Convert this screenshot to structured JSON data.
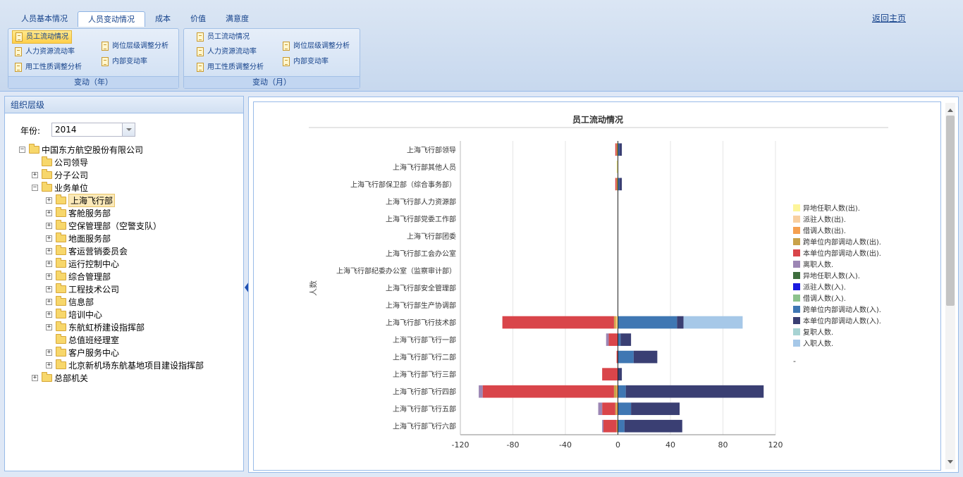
{
  "tabs": [
    "人员基本情况",
    "人员变动情况",
    "成本",
    "价值",
    "满意度"
  ],
  "active_tab": 1,
  "return_link": "返回主页",
  "groups": [
    {
      "title": "变动（年）",
      "buttons": [
        "员工流动情况",
        "人力资源流动率",
        "用工性质调整分析",
        "岗位层级调整分析",
        "内部变动率"
      ]
    },
    {
      "title": "变动（月）",
      "buttons": [
        "员工流动情况",
        "人力资源流动率",
        "用工性质调整分析",
        "岗位层级调整分析",
        "内部变动率"
      ]
    }
  ],
  "left_panel": {
    "title": "组织层级",
    "year_label": "年份:",
    "year_value": "2014"
  },
  "tree": [
    {
      "label": "中国东方航空股份有限公司",
      "level": 0,
      "exp": "minus"
    },
    {
      "label": "公司领导",
      "level": 1,
      "exp": ""
    },
    {
      "label": "分子公司",
      "level": 1,
      "exp": "plus"
    },
    {
      "label": "业务单位",
      "level": 1,
      "exp": "minus"
    },
    {
      "label": "上海飞行部",
      "level": 2,
      "exp": "plus",
      "selected": true
    },
    {
      "label": "客舱服务部",
      "level": 2,
      "exp": "plus"
    },
    {
      "label": "空保管理部（空警支队）",
      "level": 2,
      "exp": "plus"
    },
    {
      "label": "地面服务部",
      "level": 2,
      "exp": "plus"
    },
    {
      "label": "客运营销委员会",
      "level": 2,
      "exp": "plus"
    },
    {
      "label": "运行控制中心",
      "level": 2,
      "exp": "plus"
    },
    {
      "label": "综合管理部",
      "level": 2,
      "exp": "plus"
    },
    {
      "label": "工程技术公司",
      "level": 2,
      "exp": "plus"
    },
    {
      "label": "信息部",
      "level": 2,
      "exp": "plus"
    },
    {
      "label": "培训中心",
      "level": 2,
      "exp": "plus"
    },
    {
      "label": "东航虹桥建设指挥部",
      "level": 2,
      "exp": "plus"
    },
    {
      "label": "总值班经理室",
      "level": 2,
      "exp": ""
    },
    {
      "label": "客户服务中心",
      "level": 2,
      "exp": "plus"
    },
    {
      "label": "北京新机场东航基地项目建设指挥部",
      "level": 2,
      "exp": "plus"
    },
    {
      "label": "总部机关",
      "level": 1,
      "exp": "plus"
    }
  ],
  "chart_data": {
    "type": "bar",
    "orientation": "horizontal",
    "stacked": true,
    "title": "员工流动情况",
    "ylabel": "人数",
    "xlim": [
      -120,
      120
    ],
    "xticks": [
      -120,
      -80,
      -40,
      0,
      40,
      80,
      120
    ],
    "grid": true,
    "legend_position": "right",
    "categories": [
      "上海飞行部领导",
      "上海飞行部其他人员",
      "上海飞行部保卫部（综合事务部）",
      "上海飞行部人力资源部",
      "上海飞行部党委工作部",
      "上海飞行部团委",
      "上海飞行部工会办公室",
      "上海飞行部纪委办公室（监察审计部）",
      "上海飞行部安全管理部",
      "上海飞行部生产协调部",
      "上海飞行部飞行技术部",
      "上海飞行部飞行一部",
      "上海飞行部飞行二部",
      "上海飞行部飞行三部",
      "上海飞行部飞行四部",
      "上海飞行部飞行五部",
      "上海飞行部飞行六部"
    ],
    "series": [
      {
        "name": "异地任职人数(出).",
        "color": "#fdf59a",
        "values": [
          0,
          -1,
          0,
          0,
          0,
          0,
          0,
          0,
          0,
          0,
          -1,
          0,
          0,
          0,
          0,
          0,
          0
        ]
      },
      {
        "name": "派驻人数(出).",
        "color": "#f8cfa0",
        "values": [
          0,
          0,
          0,
          0,
          0,
          0,
          0,
          0,
          0,
          0,
          0,
          0,
          0,
          0,
          0,
          0,
          0
        ]
      },
      {
        "name": "借调人数(出).",
        "color": "#f5a050",
        "values": [
          0,
          0,
          0,
          0,
          0,
          0,
          0,
          0,
          0,
          0,
          -1,
          0,
          0,
          0,
          -1,
          -1,
          0
        ]
      },
      {
        "name": "跨单位内部调动人数(出).",
        "color": "#c9a24a",
        "values": [
          -1,
          0,
          -1,
          0,
          0,
          0,
          0,
          0,
          0,
          0,
          -1,
          0,
          0,
          0,
          -2,
          -1,
          -1
        ]
      },
      {
        "name": "本单位内部调动人数(出).",
        "color": "#d9454a",
        "values": [
          -1,
          0,
          -1,
          0,
          0,
          0,
          0,
          0,
          0,
          0,
          -85,
          -7,
          -1,
          -12,
          -100,
          -10,
          -10
        ]
      },
      {
        "name": "离职人数.",
        "color": "#9c86b4",
        "values": [
          0,
          0,
          0,
          0,
          0,
          0,
          0,
          0,
          0,
          0,
          0,
          -2,
          0,
          0,
          -3,
          -3,
          -1
        ]
      },
      {
        "name": "异地任职人数(入).",
        "color": "#3e6e3e",
        "values": [
          0,
          0,
          0,
          0,
          0,
          0,
          0,
          0,
          0,
          0,
          0,
          0,
          0,
          0,
          0,
          0,
          0
        ]
      },
      {
        "name": "派驻人数(入).",
        "color": "#1a1ae0",
        "values": [
          0,
          0,
          0,
          0,
          0,
          0,
          0,
          0,
          0,
          0,
          0,
          0,
          0,
          0,
          0,
          0,
          0
        ]
      },
      {
        "name": "借调人数(入).",
        "color": "#8cc28c",
        "values": [
          0,
          0,
          0,
          0,
          0,
          0,
          0,
          0,
          0,
          0,
          0,
          0,
          0,
          0,
          0,
          0,
          0
        ]
      },
      {
        "name": "跨单位内部调动人数(入).",
        "color": "#3f77b3",
        "values": [
          1,
          0,
          1,
          0,
          0,
          0,
          0,
          0,
          0,
          0,
          45,
          2,
          12,
          0,
          6,
          10,
          5
        ]
      },
      {
        "name": "本单位内部调动人数(入).",
        "color": "#3a3f73",
        "values": [
          2,
          0,
          2,
          0,
          0,
          0,
          0,
          0,
          0,
          0,
          5,
          8,
          18,
          3,
          105,
          37,
          44
        ]
      },
      {
        "name": "复职人数.",
        "color": "#a7d3d3",
        "values": [
          0,
          0,
          0,
          0,
          0,
          0,
          0,
          0,
          0,
          0,
          0,
          0,
          0,
          0,
          0,
          0,
          0
        ]
      },
      {
        "name": "入职人数.",
        "color": "#a6c8e8",
        "values": [
          0,
          0,
          0,
          0,
          0,
          0,
          0,
          0,
          0,
          0,
          45,
          0,
          0,
          0,
          0,
          0,
          0
        ]
      }
    ],
    "extra_legend": "-"
  }
}
